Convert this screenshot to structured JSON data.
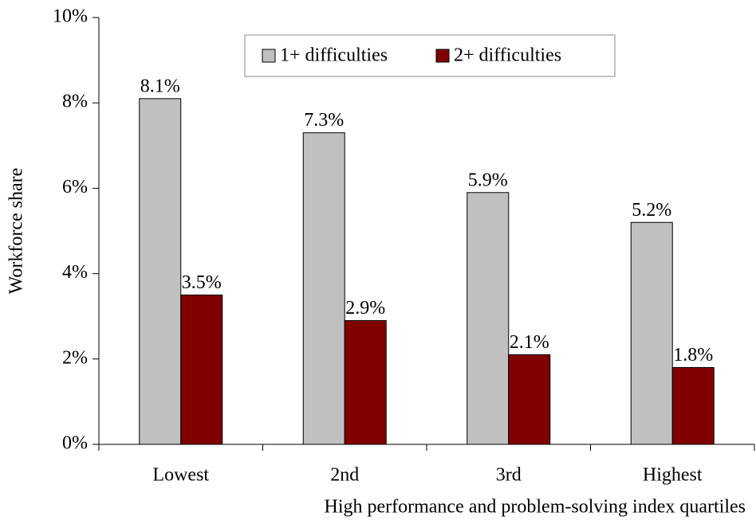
{
  "chart_data": {
    "type": "bar",
    "categories": [
      "Lowest",
      "2nd",
      "3rd",
      "Highest"
    ],
    "series": [
      {
        "name": "1+ difficulties",
        "color": "#c0c0c0",
        "values": [
          8.1,
          7.3,
          5.9,
          5.2
        ],
        "value_labels": [
          "8.1%",
          "7.3%",
          "5.9%",
          "5.2%"
        ]
      },
      {
        "name": "2+ difficulties",
        "color": "#800000",
        "values": [
          3.5,
          2.9,
          2.1,
          1.8
        ],
        "value_labels": [
          "3.5%",
          "2.9%",
          "2.1%",
          "1.8%"
        ]
      }
    ],
    "ylabel": "Workforce share",
    "xlabel": "High performance and problem-solving index quartiles",
    "ylim": [
      0,
      10
    ],
    "yticks": [
      {
        "value": 0,
        "label": "0%"
      },
      {
        "value": 2,
        "label": "2%"
      },
      {
        "value": 4,
        "label": "4%"
      },
      {
        "value": 6,
        "label": "6%"
      },
      {
        "value": 8,
        "label": "8%"
      },
      {
        "value": 10,
        "label": "10%"
      }
    ],
    "legend": "top"
  }
}
